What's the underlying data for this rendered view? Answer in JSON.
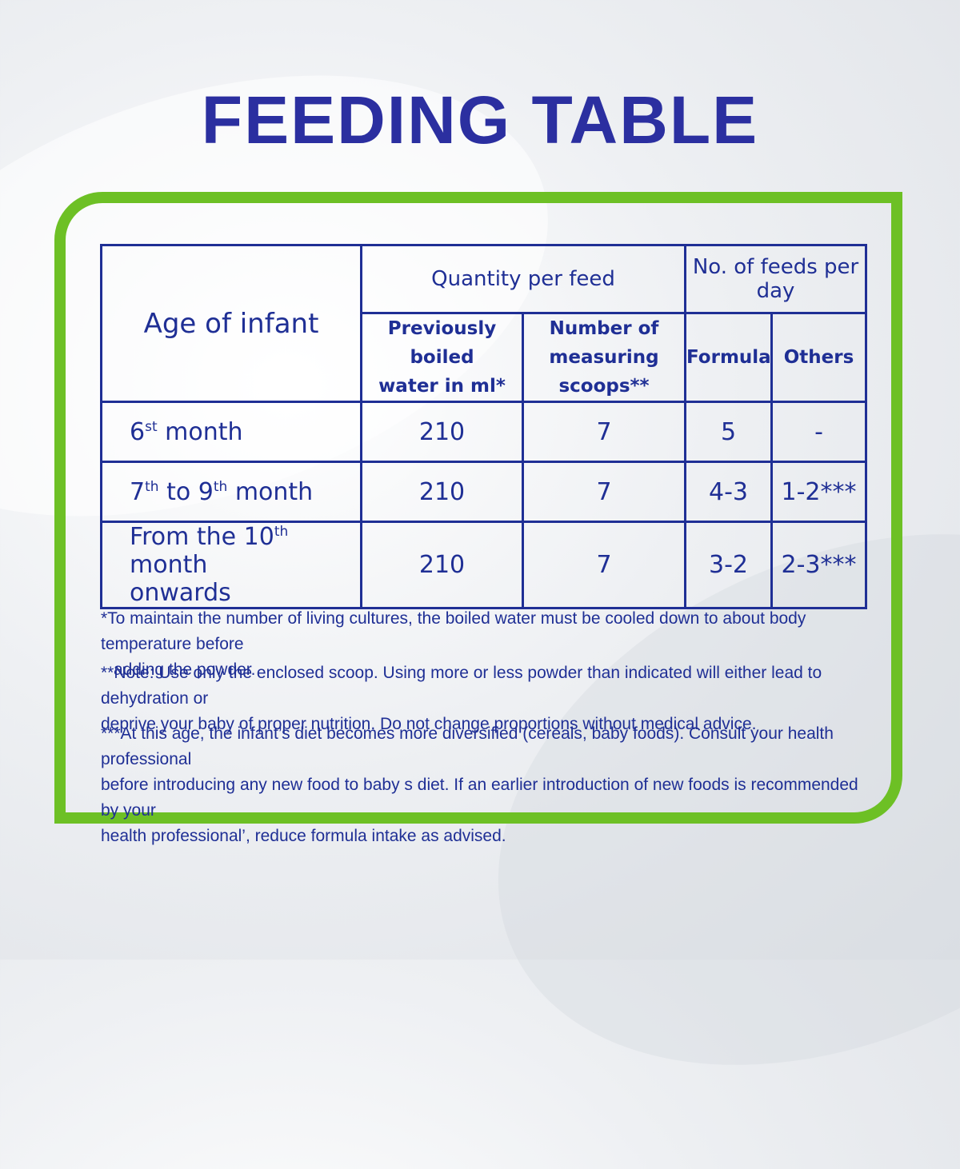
{
  "title": "FEEDING TABLE",
  "table": {
    "age_header": "Age of infant",
    "quantity_header": "Quantity per feed",
    "feeds_header": "No. of feeds per day",
    "water_header_1": "Previously boiled",
    "water_header_2": "water in ml*",
    "scoops_header_1": "Number of",
    "scoops_header_2": "measuring scoops**",
    "formula_header": "Formula",
    "others_header": "Others",
    "rows": [
      {
        "age_a": "6",
        "age_sup": "st",
        "age_b": " month",
        "water": "210",
        "scoops": "7",
        "formula": "5",
        "others": "-"
      },
      {
        "age_a": "7",
        "age_sup": "th",
        "age_b": " to 9",
        "age_sup2": "th",
        "age_c": " month",
        "water": "210",
        "scoops": "7",
        "formula": "4-3",
        "others": "1-2***"
      },
      {
        "age_a": "From the 10",
        "age_sup": "th",
        "age_b": " month",
        "age_line2": "onwards",
        "water": "210",
        "scoops": "7",
        "formula": "3-2",
        "others": "2-3***"
      }
    ]
  },
  "notes": {
    "n1_line1": "*To maintain the number of living cultures, the boiled water must be cooled down to about body temperature before",
    "n1_line2": "adding the powder.",
    "n2_line1": "**Note: Use only the enclosed scoop. Using more or less powder than indicated will either lead to dehydration or",
    "n2_line2": "deprive your baby of proper nutrition. Do not change proportions without medical advice.",
    "n3_line1": "***At this age, the infant’s diet becomes more diversified (cereals, baby foods). Consult your health professional",
    "n3_line2": "before introducing any new food to baby s diet. If an earlier introduction of new foods is recommended by your",
    "n3_line3": "health professional’, reduce formula intake as advised."
  },
  "colors": {
    "text": "#1f2f95",
    "title": "#2b2fa0",
    "frame": "#6dc025"
  }
}
